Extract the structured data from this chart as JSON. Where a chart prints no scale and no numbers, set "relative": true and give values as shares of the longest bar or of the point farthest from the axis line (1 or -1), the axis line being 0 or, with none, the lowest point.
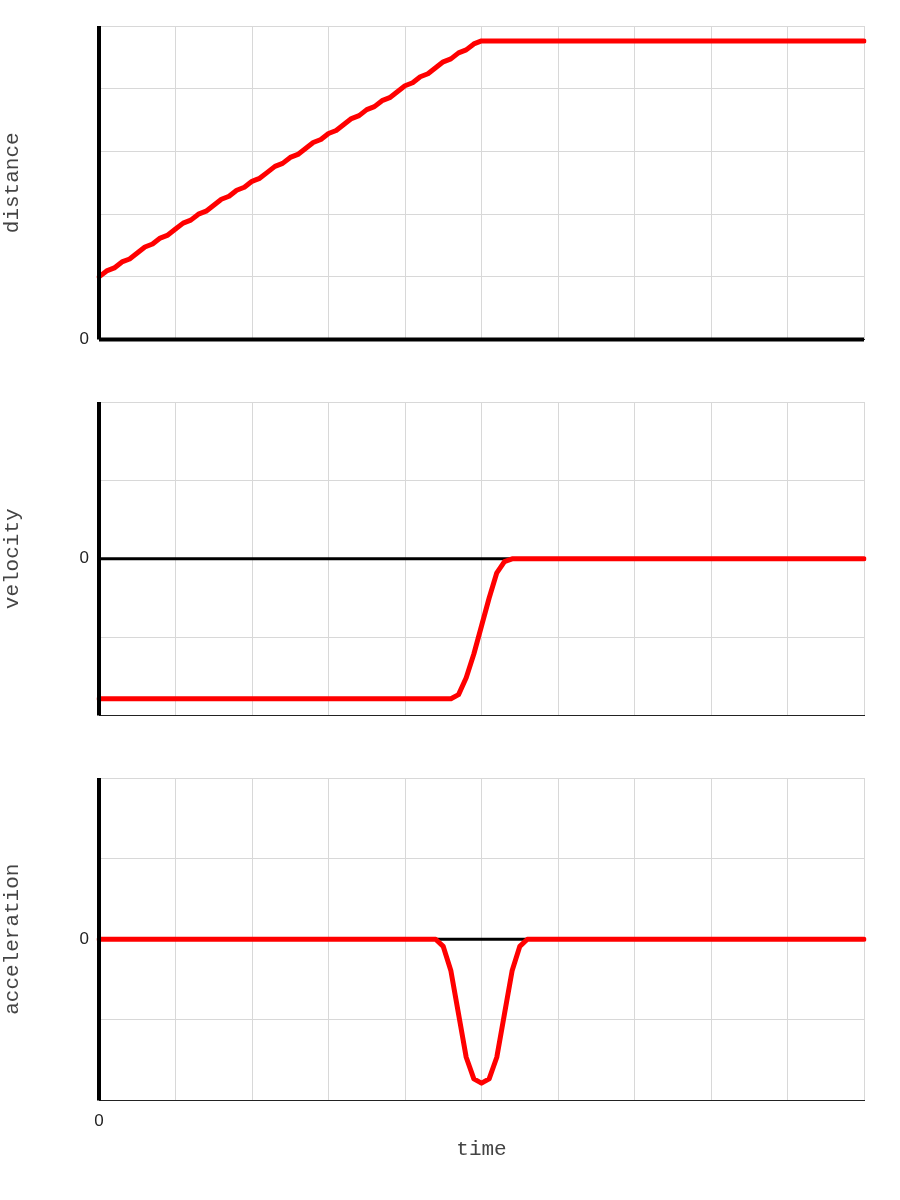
{
  "chart_data": [
    {
      "type": "line",
      "ylabel": "distance",
      "relative": true,
      "grid": true,
      "legend": false,
      "marker": "none",
      "line_style": "solid",
      "categories": [
        null,
        null,
        null,
        null,
        null,
        null,
        null,
        null,
        null,
        null,
        null,
        null,
        null,
        null,
        null,
        null,
        null,
        null,
        null,
        null,
        null,
        null,
        null,
        null,
        null,
        null,
        null,
        null,
        null,
        null,
        null,
        null,
        null,
        null,
        null,
        null,
        null,
        null,
        null,
        null,
        null,
        null,
        null,
        null,
        null,
        null,
        null,
        null,
        null,
        null,
        null,
        null,
        null,
        null,
        null,
        null,
        null,
        null,
        null,
        null,
        null,
        null,
        null,
        null,
        null,
        null,
        null,
        null,
        null,
        null,
        null,
        null,
        null,
        null,
        null,
        null,
        null,
        null,
        null,
        null,
        null,
        null,
        null,
        null,
        null,
        null,
        null,
        null,
        null,
        null,
        null,
        null,
        null,
        null,
        null,
        null,
        null,
        null,
        null,
        null,
        null
      ],
      "series": [
        {
          "color": "#ff0000",
          "values": [
            0.21,
            0.23,
            0.24,
            0.26,
            0.27,
            0.29,
            0.31,
            0.32,
            0.34,
            0.35,
            0.37,
            0.39,
            0.4,
            0.42,
            0.43,
            0.45,
            0.47,
            0.48,
            0.5,
            0.51,
            0.53,
            0.54,
            0.56,
            0.58,
            0.59,
            0.61,
            0.62,
            0.64,
            0.66,
            0.67,
            0.69,
            0.7,
            0.72,
            0.74,
            0.75,
            0.77,
            0.78,
            0.8,
            0.81,
            0.83,
            0.85,
            0.86,
            0.88,
            0.89,
            0.91,
            0.93,
            0.94,
            0.96,
            0.97,
            0.99,
            1,
            1,
            1,
            1,
            1,
            1,
            1,
            1,
            1,
            1,
            1,
            1,
            1,
            1,
            1,
            1,
            1,
            1,
            1,
            1,
            1,
            1,
            1,
            1,
            1,
            1,
            1,
            1,
            1,
            1,
            1,
            1,
            1,
            1,
            1,
            1,
            1,
            1,
            1,
            1,
            1,
            1,
            1,
            1,
            1,
            1,
            1,
            1,
            1,
            1,
            1
          ]
        }
      ],
      "annotations": [
        "0"
      ]
    },
    {
      "type": "line",
      "ylabel": "velocity",
      "relative": true,
      "grid": true,
      "legend": false,
      "marker": "none",
      "line_style": "solid",
      "categories": [
        null,
        null,
        null,
        null,
        null,
        null,
        null,
        null,
        null,
        null,
        null,
        null,
        null,
        null,
        null,
        null,
        null,
        null,
        null,
        null,
        null,
        null,
        null,
        null,
        null,
        null,
        null,
        null,
        null,
        null,
        null,
        null,
        null,
        null,
        null,
        null,
        null,
        null,
        null,
        null,
        null,
        null,
        null,
        null,
        null,
        null,
        null,
        null,
        null,
        null,
        null,
        null,
        null,
        null,
        null,
        null,
        null,
        null,
        null,
        null,
        null,
        null,
        null,
        null,
        null,
        null,
        null,
        null,
        null,
        null,
        null,
        null,
        null,
        null,
        null,
        null,
        null,
        null,
        null,
        null,
        null,
        null,
        null,
        null,
        null,
        null,
        null,
        null,
        null,
        null,
        null,
        null,
        null,
        null,
        null,
        null,
        null,
        null,
        null,
        null,
        null
      ],
      "series": [
        {
          "color": "#ff0000",
          "values": [
            -1,
            -1,
            -1,
            -1,
            -1,
            -1,
            -1,
            -1,
            -1,
            -1,
            -1,
            -1,
            -1,
            -1,
            -1,
            -1,
            -1,
            -1,
            -1,
            -1,
            -1,
            -1,
            -1,
            -1,
            -1,
            -1,
            -1,
            -1,
            -1,
            -1,
            -1,
            -1,
            -1,
            -1,
            -1,
            -1,
            -1,
            -1,
            -1,
            -1,
            -1,
            -1,
            -1,
            -1,
            -1,
            -1,
            -1,
            -0.97,
            -0.85,
            -0.68,
            -0.48,
            -0.28,
            -0.1,
            -0.02,
            0,
            0,
            0,
            0,
            0,
            0,
            0,
            0,
            0,
            0,
            0,
            0,
            0,
            0,
            0,
            0,
            0,
            0,
            0,
            0,
            0,
            0,
            0,
            0,
            0,
            0,
            0,
            0,
            0,
            0,
            0,
            0,
            0,
            0,
            0,
            0,
            0,
            0,
            0,
            0,
            0,
            0,
            0,
            0,
            0,
            0,
            0
          ]
        }
      ],
      "ref_lines": [
        {
          "axis": "y",
          "value": 0,
          "color": "#000000"
        }
      ],
      "annotations": [
        "0"
      ]
    },
    {
      "type": "line",
      "ylabel": "acceleration",
      "xlabel": "time",
      "relative": true,
      "grid": true,
      "legend": false,
      "marker": "none",
      "line_style": "solid",
      "categories": [
        null,
        null,
        null,
        null,
        null,
        null,
        null,
        null,
        null,
        null,
        null,
        null,
        null,
        null,
        null,
        null,
        null,
        null,
        null,
        null,
        null,
        null,
        null,
        null,
        null,
        null,
        null,
        null,
        null,
        null,
        null,
        null,
        null,
        null,
        null,
        null,
        null,
        null,
        null,
        null,
        null,
        null,
        null,
        null,
        null,
        null,
        null,
        null,
        null,
        null,
        null,
        null,
        null,
        null,
        null,
        null,
        null,
        null,
        null,
        null,
        null,
        null,
        null,
        null,
        null,
        null,
        null,
        null,
        null,
        null,
        null,
        null,
        null,
        null,
        null,
        null,
        null,
        null,
        null,
        null,
        null,
        null,
        null,
        null,
        null,
        null,
        null,
        null,
        null,
        null,
        null,
        null,
        null,
        null,
        null,
        null,
        null,
        null,
        null,
        null,
        null
      ],
      "series": [
        {
          "color": "#ff0000",
          "values": [
            0,
            0,
            0,
            0,
            0,
            0,
            0,
            0,
            0,
            0,
            0,
            0,
            0,
            0,
            0,
            0,
            0,
            0,
            0,
            0,
            0,
            0,
            0,
            0,
            0,
            0,
            0,
            0,
            0,
            0,
            0,
            0,
            0,
            0,
            0,
            0,
            0,
            0,
            0,
            0,
            0,
            0,
            0,
            0,
            0,
            -0.05,
            -0.22,
            -0.52,
            -0.82,
            -0.97,
            -1,
            -0.97,
            -0.82,
            -0.52,
            -0.22,
            -0.05,
            0,
            0,
            0,
            0,
            0,
            0,
            0,
            0,
            0,
            0,
            0,
            0,
            0,
            0,
            0,
            0,
            0,
            0,
            0,
            0,
            0,
            0,
            0,
            0,
            0,
            0,
            0,
            0,
            0,
            0,
            0,
            0,
            0,
            0,
            0,
            0,
            0,
            0,
            0,
            0,
            0,
            0,
            0,
            0,
            0
          ]
        }
      ],
      "ref_lines": [
        {
          "axis": "y",
          "value": 0,
          "color": "#000000"
        }
      ],
      "annotations": [
        "0",
        "0"
      ]
    }
  ]
}
